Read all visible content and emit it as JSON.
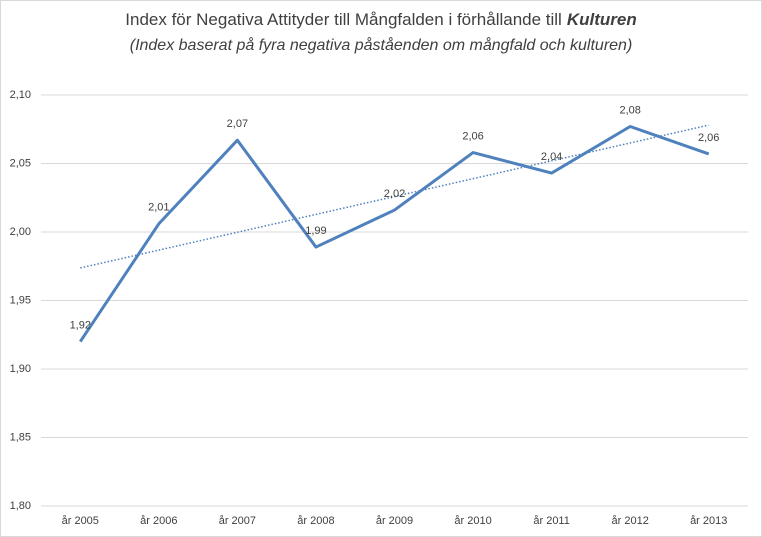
{
  "chart_data": {
    "type": "line",
    "title": "Index för Negativa Attityder till Mångfalden i förhållande till",
    "title_emphasis": "Kulturen",
    "subtitle": "(Index baserat på fyra negativa påståenden om mångfald och kulturen)",
    "categories": [
      "år 2005",
      "år 2006",
      "år 2007",
      "år 2008",
      "år 2009",
      "år 2010",
      "år 2011",
      "år 2012",
      "år 2013"
    ],
    "values": [
      1.92,
      2.006,
      2.067,
      1.989,
      2.016,
      2.058,
      2.043,
      2.077,
      2.057
    ],
    "value_labels": [
      "1,92",
      "2,01",
      "2,07",
      "1,99",
      "2,02",
      "2,06",
      "2,04",
      "2,08",
      "2,06"
    ],
    "color": "#4f81bd",
    "trendline": "linear",
    "ylim": [
      1.8,
      2.1
    ],
    "yticks": [
      {
        "value": 1.8,
        "label": "1,80"
      },
      {
        "value": 1.85,
        "label": "1,85"
      },
      {
        "value": 1.9,
        "label": "1,90"
      },
      {
        "value": 1.95,
        "label": "1,95"
      },
      {
        "value": 2.0,
        "label": "2,00"
      },
      {
        "value": 2.05,
        "label": "2,05"
      },
      {
        "value": 2.1,
        "label": "2,10"
      }
    ],
    "grid": true
  }
}
